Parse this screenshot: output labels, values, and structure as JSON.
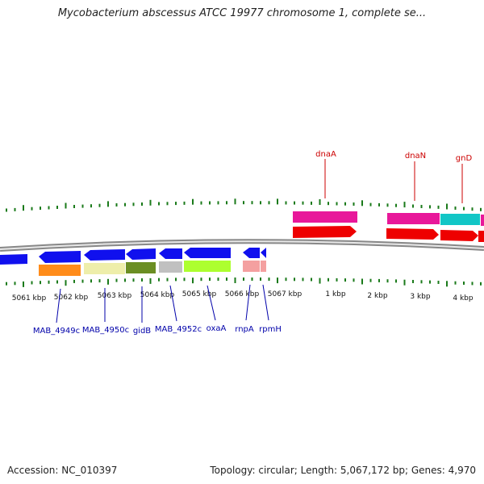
{
  "title": "Mycobacterium abscessus ATCC 19977 chromosome 1, complete se...",
  "footer": {
    "accession": "Accession: NC_010397",
    "summary": "Topology: circular; Length: 5,067,172 bp; Genes: 4,970"
  },
  "colors": {
    "backbone": "#7f7f7f",
    "ticks": "#1a7a1a",
    "gene_label_forward": "#cc0000",
    "gene_label_reverse": "#0000aa",
    "blue_gene": "#1010ee",
    "magenta_gene": "#e8189a",
    "red_gene": "#ee0000",
    "cyan_gene": "#12c6c6"
  },
  "scale_labels": [
    "5061 kbp",
    "5062 kbp",
    "5063 kbp",
    "5064 kbp",
    "5065 kbp",
    "5066 kbp",
    "5067 kbp",
    "1 kbp",
    "2 kbp",
    "3 kbp",
    "4 kbp"
  ],
  "forward_gene_labels": [
    "dnaA",
    "dnaN",
    "gnD"
  ],
  "reverse_gene_labels": [
    "MAB_4949c",
    "MAB_4950c",
    "gidB",
    "MAB_4952c",
    "oxaA",
    "rnpA",
    "rpmH"
  ],
  "features": {
    "reverse_strand_colors": [
      "blue",
      "blue",
      "blue",
      "blue",
      "blue",
      "blue",
      "blue"
    ],
    "cog_colors": [
      "#ff8c1a",
      "#eeeeaa",
      "#6b8e23",
      "#c0c0c0",
      "#adff2f",
      "#f4a0a0"
    ],
    "forward_top_colors": [
      "#e8189a",
      "#e8189a",
      "#12c6c6"
    ],
    "forward_bottom_colors": [
      "#ee0000",
      "#ee0000",
      "#ee0000"
    ]
  }
}
